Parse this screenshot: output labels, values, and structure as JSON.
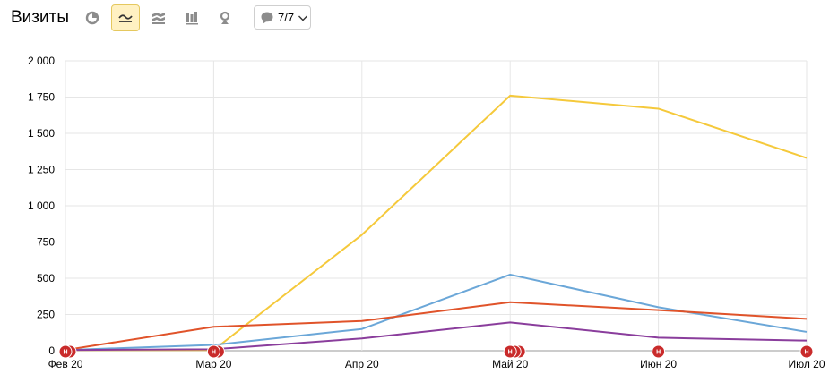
{
  "header": {
    "title": "Визиты",
    "annotations_count": "7/7"
  },
  "toolbar": {
    "icons": [
      "pie-chart-icon",
      "line-chart-icon",
      "stacked-area-icon",
      "stacked-bar-icon",
      "map-pin-icon",
      "comment-icon",
      "chevron-down-icon"
    ],
    "active": "line-chart-icon"
  },
  "chart_data": {
    "type": "line",
    "title": "Визиты",
    "categories": [
      "Фев 20",
      "Мар 20",
      "Апр 20",
      "Май 20",
      "Июн 20",
      "Июл 20"
    ],
    "ylim": [
      0,
      2000
    ],
    "yticks": [
      0,
      250,
      500,
      750,
      1000,
      1250,
      1500,
      1750,
      2000
    ],
    "ytick_labels": [
      "0",
      "250",
      "500",
      "750",
      "1 000",
      "1 250",
      "1 500",
      "1 750",
      "2 000"
    ],
    "grid": true,
    "series": [
      {
        "color": "#f5c93b",
        "values": [
          5,
          5,
          800,
          1760,
          1670,
          1330
        ]
      },
      {
        "color": "#6ba7d8",
        "values": [
          5,
          40,
          150,
          525,
          300,
          130
        ]
      },
      {
        "color": "#e0532a",
        "values": [
          5,
          165,
          205,
          335,
          280,
          220
        ]
      },
      {
        "color": "#8a3d9c",
        "values": [
          5,
          10,
          85,
          195,
          90,
          70
        ]
      }
    ],
    "annotations": [
      {
        "category": "Фев 20",
        "label": "Н",
        "count": 2
      },
      {
        "category": "Мар 20",
        "label": "Н",
        "count": 2
      },
      {
        "category": "Май 20",
        "label": "Н",
        "count": 3
      },
      {
        "category": "Июн 20",
        "label": "Н",
        "count": 1
      },
      {
        "category": "Июл 20",
        "label": "Н",
        "count": 1
      }
    ],
    "marker_color": "#c92b2b"
  }
}
